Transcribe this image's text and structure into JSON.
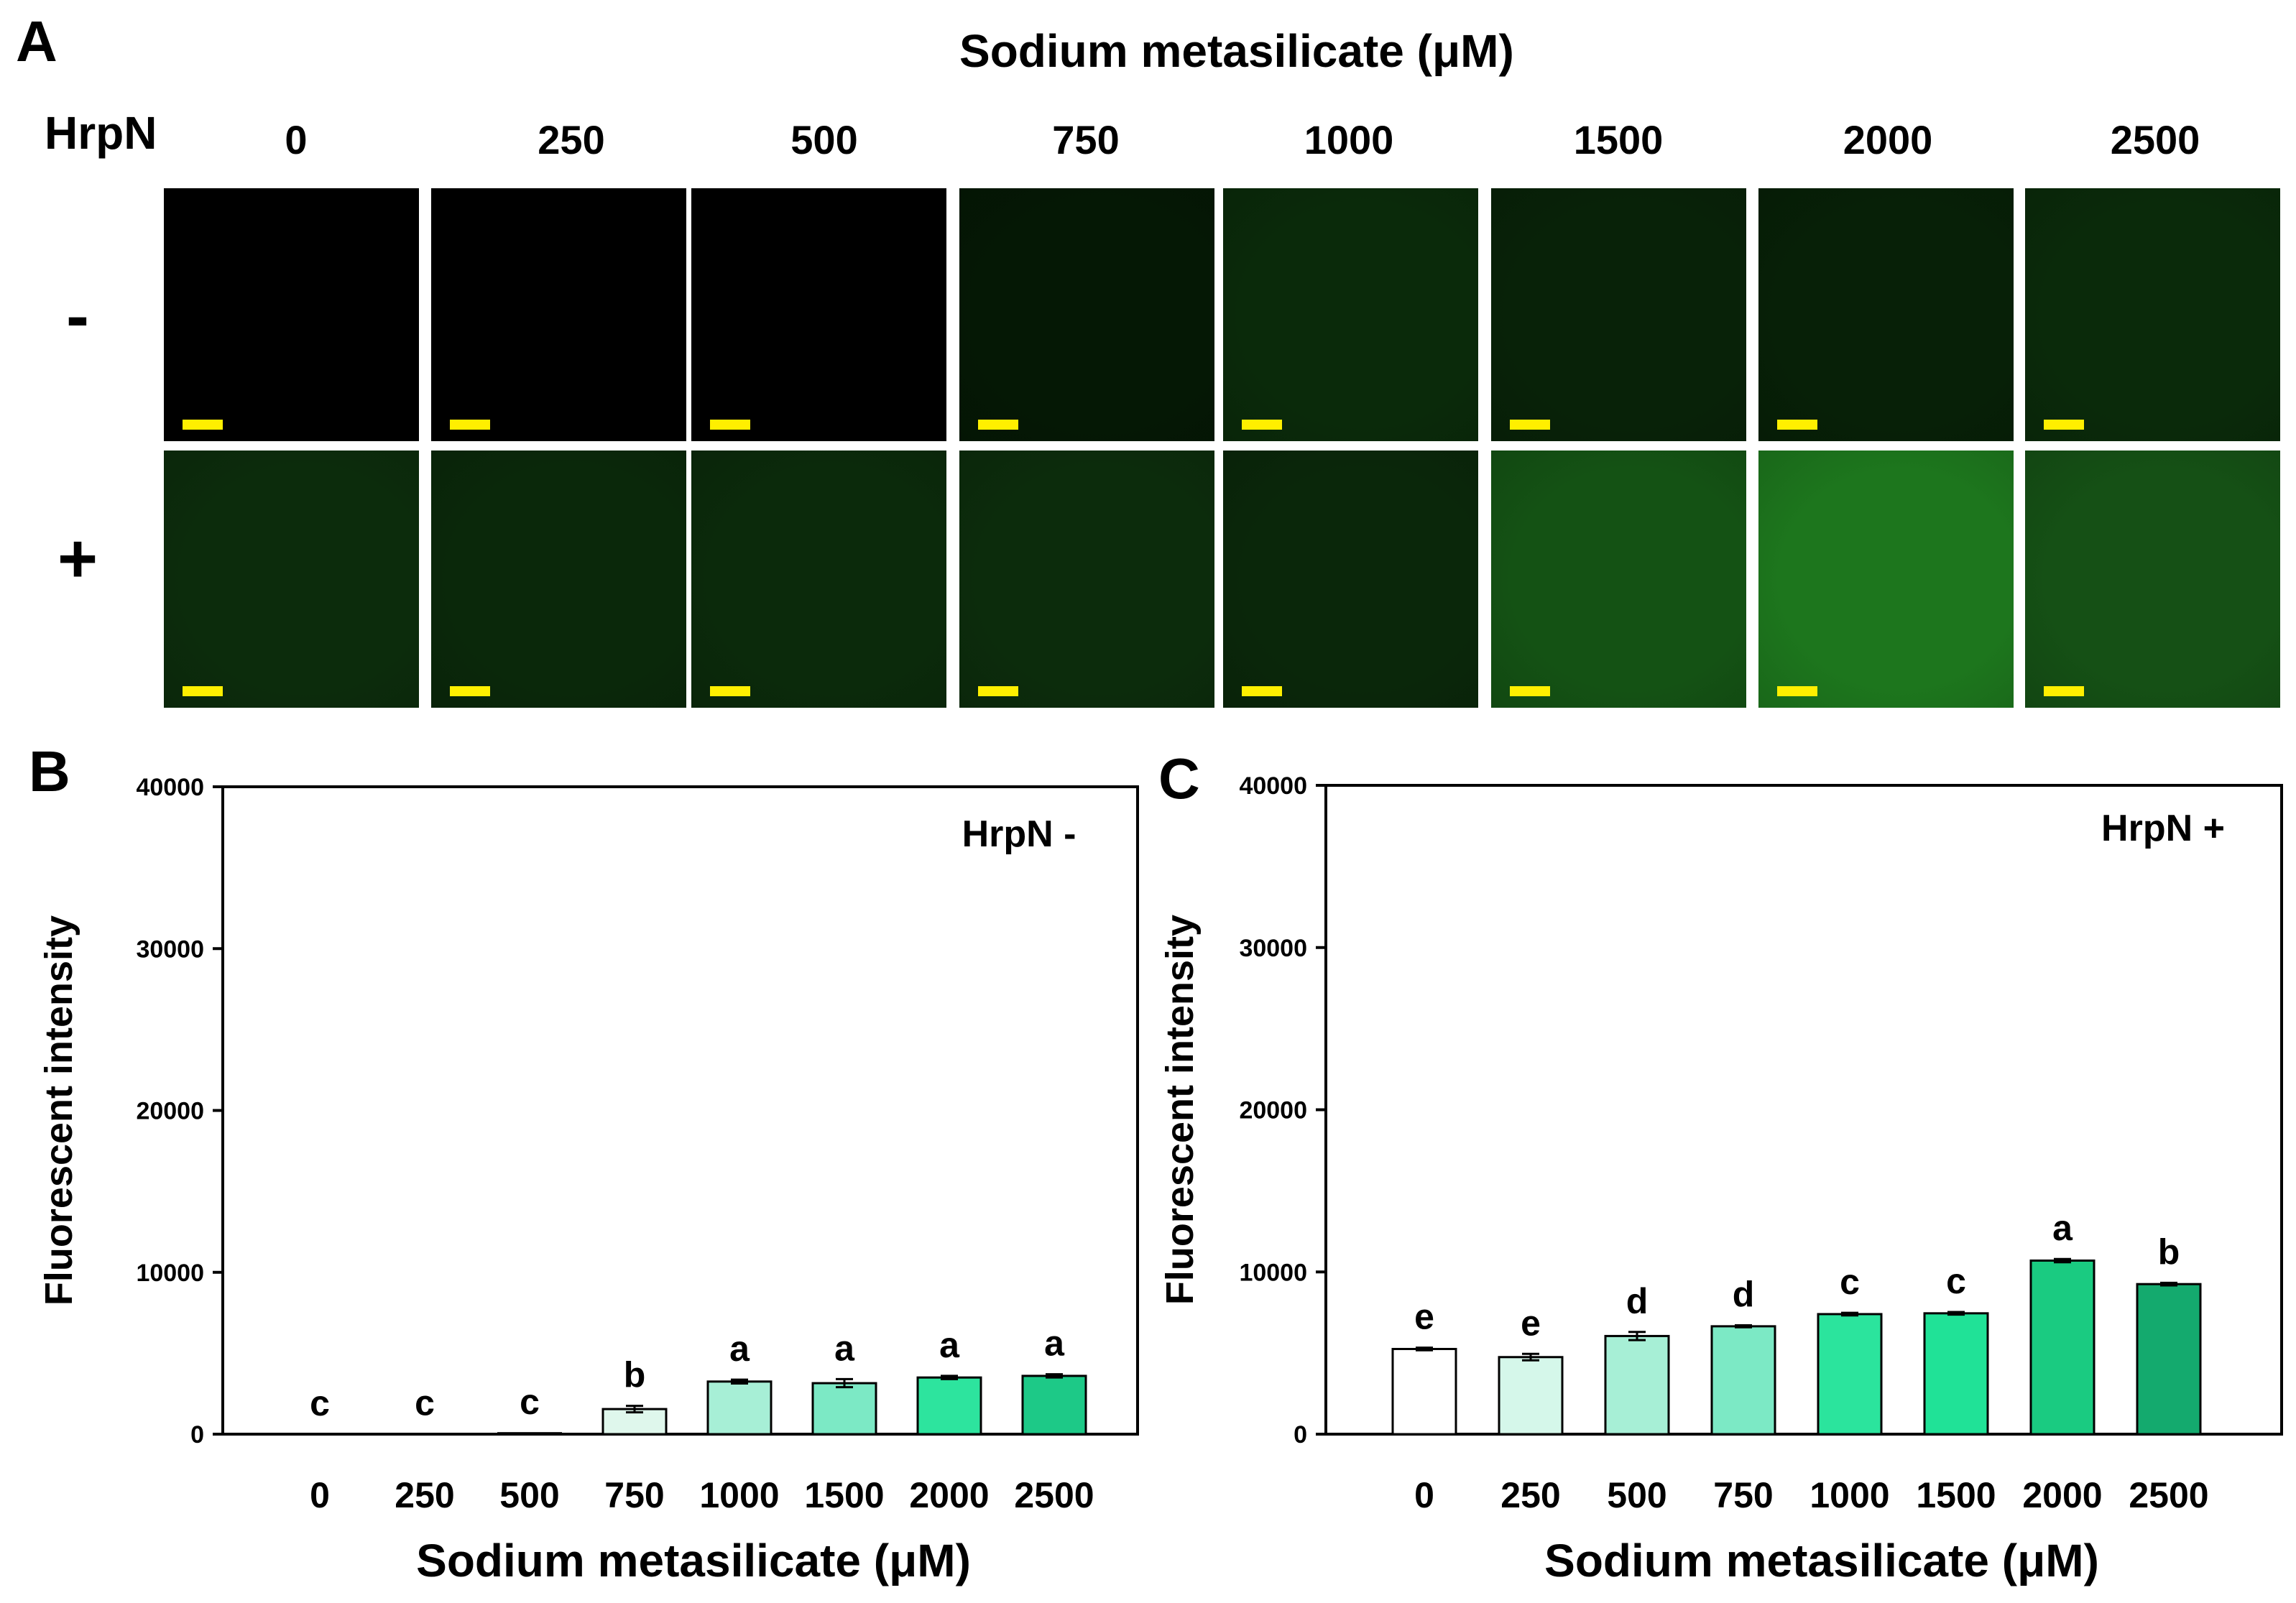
{
  "panel_a": {
    "letter": "A",
    "title": "Sodium metasilicate (μM)",
    "row_header": "HrpN",
    "concentrations": [
      "0",
      "250",
      "500",
      "750",
      "1000",
      "1500",
      "2000",
      "2500"
    ],
    "row_labels": [
      "-",
      "+"
    ],
    "tile_colors": {
      "minus": [
        "#000000",
        "#000000",
        "#000000",
        "#051805",
        "#0a2a0a",
        "#082208",
        "#072007",
        "#0a2a0a"
      ],
      "plus": [
        "#0c2c0c",
        "#0a280a",
        "#0b2a0b",
        "#0c2c0c",
        "#0a270a",
        "#145214",
        "#1d761d",
        "#155015"
      ]
    },
    "scale_bar_color": "#ffef00"
  },
  "chart_data": [
    {
      "panel_letter": "B",
      "type": "bar",
      "title": "",
      "annotation": "HrpN -",
      "xlabel": "Sodium metasilicate (μM)",
      "ylabel": "Fluorescent intensity",
      "ylim": [
        0,
        40000
      ],
      "yticks": [
        "0",
        "10000",
        "20000",
        "30000",
        "40000"
      ],
      "categories": [
        "0",
        "250",
        "500",
        "750",
        "1000",
        "1500",
        "2000",
        "2500"
      ],
      "values": [
        0,
        30,
        80,
        1550,
        3250,
        3150,
        3500,
        3600
      ],
      "errors": [
        0,
        0,
        0,
        200,
        120,
        250,
        100,
        100
      ],
      "letters": [
        "c",
        "c",
        "c",
        "b",
        "a",
        "a",
        "a",
        "a"
      ],
      "colors": [
        "#ffffff",
        "#ffffff",
        "#ffffff",
        "#dff7ec",
        "#a7efd6",
        "#7ce9c5",
        "#2de49e",
        "#1dc987"
      ]
    },
    {
      "panel_letter": "C",
      "type": "bar",
      "title": "",
      "annotation": "HrpN +",
      "xlabel": "Sodium metasilicate (μM)",
      "ylabel": "Fluorescent intensity",
      "ylim": [
        0,
        40000
      ],
      "yticks": [
        "0",
        "10000",
        "20000",
        "30000",
        "40000"
      ],
      "categories": [
        "0",
        "250",
        "500",
        "750",
        "1000",
        "1500",
        "2000",
        "2500"
      ],
      "values": [
        5250,
        4750,
        6050,
        6650,
        7400,
        7450,
        10700,
        9250
      ],
      "errors": [
        80,
        200,
        250,
        60,
        80,
        80,
        100,
        80
      ],
      "letters": [
        "e",
        "e",
        "d",
        "d",
        "c",
        "c",
        "a",
        "b"
      ],
      "colors": [
        "#ffffff",
        "#d5f7ea",
        "#a7efd6",
        "#7ce9c5",
        "#2be49d",
        "#20e297",
        "#1acb81",
        "#14aa6e"
      ]
    }
  ]
}
